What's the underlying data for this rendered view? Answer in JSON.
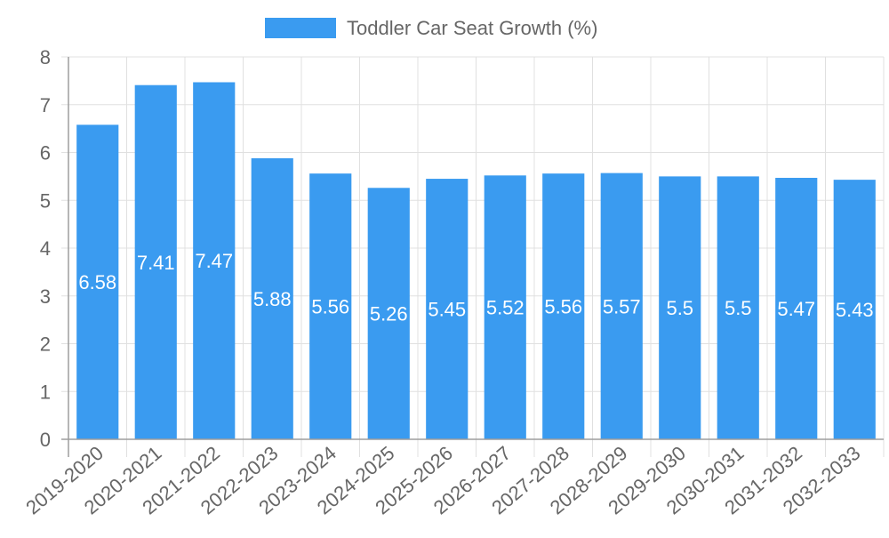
{
  "chart_data": {
    "type": "bar",
    "title": "",
    "xlabel": "",
    "ylabel": "",
    "ylim": [
      0,
      8
    ],
    "yticks": [
      0,
      1,
      2,
      3,
      4,
      5,
      6,
      7,
      8
    ],
    "grid": true,
    "legend": {
      "position": "top",
      "entries": [
        "Toddler Car Seat Growth (%)"
      ]
    },
    "categories": [
      "2019-2020",
      "2020-2021",
      "2021-2022",
      "2022-2023",
      "2023-2024",
      "2024-2025",
      "2025-2026",
      "2026-2027",
      "2027-2028",
      "2028-2029",
      "2029-2030",
      "2030-2031",
      "2031-2032",
      "2032-2033"
    ],
    "series": [
      {
        "name": "Toddler Car Seat Growth (%)",
        "color": "#3a9bf0",
        "values": [
          6.58,
          7.41,
          7.47,
          5.88,
          5.56,
          5.26,
          5.45,
          5.52,
          5.56,
          5.57,
          5.5,
          5.5,
          5.47,
          5.43
        ],
        "data_labels": [
          "6.58",
          "7.41",
          "7.47",
          "5.88",
          "5.56",
          "5.26",
          "5.45",
          "5.52",
          "5.56",
          "5.57",
          "5.5",
          "5.5",
          "5.47",
          "5.43"
        ]
      }
    ]
  },
  "colors": {
    "bar": "#3a9bf0",
    "grid": "#e0e0e0",
    "axis": "#9e9e9e",
    "tick_text": "#666666",
    "label_text": "#ffffff"
  }
}
